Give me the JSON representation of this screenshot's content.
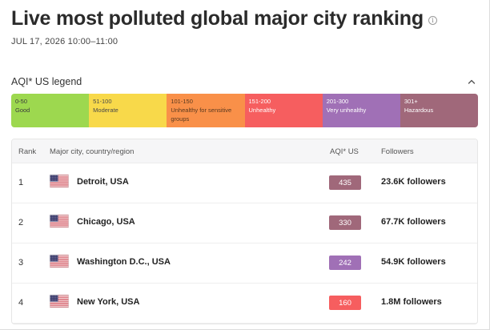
{
  "header": {
    "title": "Live most polluted global major city ranking",
    "info_icon": "i",
    "date_range": "JUL 17, 2026 10:00–11:00"
  },
  "legend": {
    "title": "AQI* US legend",
    "collapse_icon": "chevron-up-icon",
    "segments": [
      {
        "range": "0-50",
        "label": "Good",
        "color": "#9dd84f",
        "text_color": "#3c3c3c"
      },
      {
        "range": "51-100",
        "label": "Moderate",
        "color": "#f8d94a",
        "text_color": "#4a4a4a"
      },
      {
        "range": "101-150",
        "label": "Unhealthy for sensitive groups",
        "color": "#f99049",
        "text_color": "#5a3a20"
      },
      {
        "range": "151-200",
        "label": "Unhealthy",
        "color": "#f65e5f",
        "text_color": "#ffffff"
      },
      {
        "range": "201-300",
        "label": "Very unhealthy",
        "color": "#a070b6",
        "text_color": "#ffffff"
      },
      {
        "range": "301+",
        "label": "Hazardous",
        "color": "#a0687a",
        "text_color": "#ffffff"
      }
    ]
  },
  "table": {
    "headers": {
      "rank": "Rank",
      "city": "Major city, country/region",
      "aqi": "AQI* US",
      "followers": "Followers"
    },
    "rows": [
      {
        "rank": "1",
        "city": "Detroit, USA",
        "aqi": "435",
        "aqi_color": "#a0687a",
        "followers": "23.6K followers"
      },
      {
        "rank": "2",
        "city": "Chicago, USA",
        "aqi": "330",
        "aqi_color": "#a0687a",
        "followers": "67.7K followers"
      },
      {
        "rank": "3",
        "city": "Washington D.C., USA",
        "aqi": "242",
        "aqi_color": "#a070b6",
        "followers": "54.9K followers"
      },
      {
        "rank": "4",
        "city": "New York, USA",
        "aqi": "160",
        "aqi_color": "#f65e5f",
        "followers": "1.8M followers"
      }
    ]
  }
}
